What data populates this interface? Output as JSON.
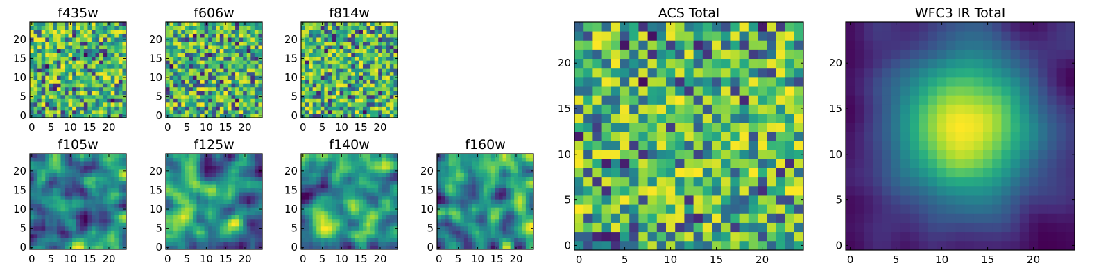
{
  "chart_data": [
    {
      "type": "heatmap",
      "title": "f435w",
      "grid_size": 25,
      "xticks": [
        0,
        5,
        10,
        15,
        20
      ],
      "yticks": [
        0,
        5,
        10,
        15,
        20
      ],
      "xlim": [
        -0.5,
        24.5
      ],
      "ylim": [
        -0.5,
        24.5
      ],
      "colormap": "viridis",
      "pattern": "noise",
      "seed": 11
    },
    {
      "type": "heatmap",
      "title": "f606w",
      "grid_size": 25,
      "xticks": [
        0,
        5,
        10,
        15,
        20
      ],
      "yticks": [
        0,
        5,
        10,
        15,
        20
      ],
      "xlim": [
        -0.5,
        24.5
      ],
      "ylim": [
        -0.5,
        24.5
      ],
      "colormap": "viridis",
      "pattern": "noise",
      "seed": 23
    },
    {
      "type": "heatmap",
      "title": "f814w",
      "grid_size": 25,
      "xticks": [
        0,
        5,
        10,
        15,
        20
      ],
      "yticks": [
        0,
        5,
        10,
        15,
        20
      ],
      "xlim": [
        -0.5,
        24.5
      ],
      "ylim": [
        -0.5,
        24.5
      ],
      "colormap": "viridis",
      "pattern": "noise",
      "seed": 37
    },
    {
      "type": "heatmap",
      "title": "f105w",
      "grid_size": 25,
      "xticks": [
        0,
        5,
        10,
        15,
        20
      ],
      "yticks": [
        0,
        5,
        10,
        15,
        20
      ],
      "xlim": [
        -0.5,
        24.5
      ],
      "ylim": [
        -0.5,
        24.5
      ],
      "colormap": "viridis",
      "pattern": "smooth",
      "seed": 41
    },
    {
      "type": "heatmap",
      "title": "f125w",
      "grid_size": 25,
      "xticks": [
        0,
        5,
        10,
        15,
        20
      ],
      "yticks": [
        0,
        5,
        10,
        15,
        20
      ],
      "xlim": [
        -0.5,
        24.5
      ],
      "ylim": [
        -0.5,
        24.5
      ],
      "colormap": "viridis",
      "pattern": "smooth",
      "seed": 53
    },
    {
      "type": "heatmap",
      "title": "f140w",
      "grid_size": 25,
      "xticks": [
        0,
        5,
        10,
        15,
        20
      ],
      "yticks": [
        0,
        5,
        10,
        15,
        20
      ],
      "xlim": [
        -0.5,
        24.5
      ],
      "ylim": [
        -0.5,
        24.5
      ],
      "colormap": "viridis",
      "pattern": "smooth",
      "seed": 67
    },
    {
      "type": "heatmap",
      "title": "f160w",
      "grid_size": 25,
      "xticks": [
        0,
        5,
        10,
        15,
        20
      ],
      "yticks": [
        0,
        5,
        10,
        15,
        20
      ],
      "xlim": [
        -0.5,
        24.5
      ],
      "ylim": [
        -0.5,
        24.5
      ],
      "colormap": "viridis",
      "pattern": "smooth",
      "seed": 79
    },
    {
      "type": "heatmap",
      "title": "ACS Total",
      "grid_size": 25,
      "xticks": [
        0,
        5,
        10,
        15,
        20
      ],
      "yticks": [
        0,
        5,
        10,
        15,
        20
      ],
      "xlim": [
        -0.5,
        24.5
      ],
      "ylim": [
        -0.5,
        24.5
      ],
      "colormap": "viridis",
      "pattern": "noise",
      "seed": 97
    },
    {
      "type": "heatmap",
      "title": "WFC3 IR Total",
      "grid_size": 25,
      "xticks": [
        0,
        5,
        10,
        15,
        20
      ],
      "yticks": [
        0,
        5,
        10,
        15,
        20
      ],
      "xlim": [
        -0.5,
        24.5
      ],
      "ylim": [
        -0.5,
        24.5
      ],
      "colormap": "viridis",
      "pattern": "blob",
      "seed": 113
    }
  ],
  "colors": {
    "frame": "#000000",
    "background": "#ffffff"
  }
}
